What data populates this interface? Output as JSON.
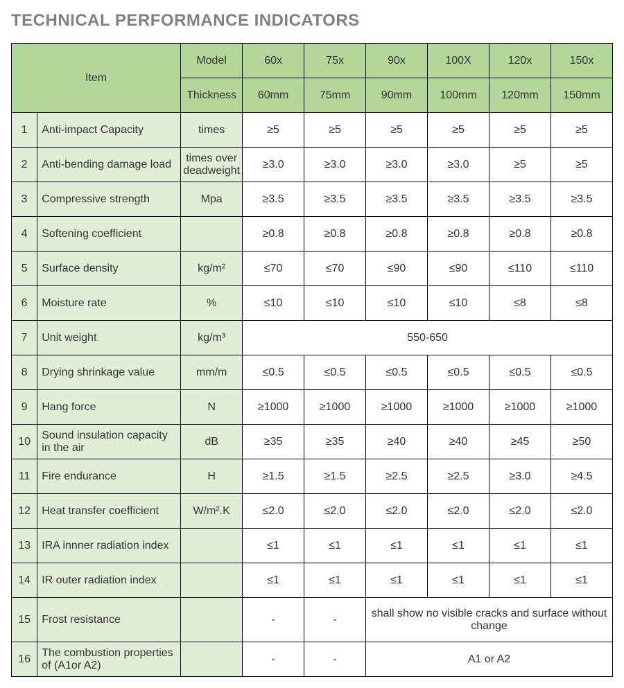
{
  "title": "TECHNICAL PERFORMANCE INDICATORS",
  "header": {
    "item": "Item",
    "model": "Model",
    "thickness": "Thickness",
    "models": [
      "60x",
      "75x",
      "90x",
      "100X",
      "120x",
      "150x"
    ],
    "thicknesses": [
      "60mm",
      "75mm",
      "90mm",
      "100mm",
      "120mm",
      "150mm"
    ]
  },
  "rows": [
    {
      "n": "1",
      "item": "Anti-impact Capacity",
      "unit": "times",
      "v": [
        "≥5",
        "≥5",
        "≥5",
        "≥5",
        "≥5",
        "≥5"
      ]
    },
    {
      "n": "2",
      "item": "Anti-bending damage load",
      "unit": "times over deadweight",
      "v": [
        "≥3.0",
        "≥3.0",
        "≥3.0",
        "≥3.0",
        "≥5",
        "≥5"
      ]
    },
    {
      "n": "3",
      "item": "Compressive strength",
      "unit": "Mpa",
      "v": [
        "≥3.5",
        "≥3.5",
        "≥3.5",
        "≥3.5",
        "≥3.5",
        "≥3.5"
      ]
    },
    {
      "n": "4",
      "item": "Softening coefficient",
      "unit": "",
      "v": [
        "≥0.8",
        "≥0.8",
        "≥0.8",
        "≥0.8",
        "≥0.8",
        "≥0.8"
      ]
    },
    {
      "n": "5",
      "item": "Surface density",
      "unit": "kg/m²",
      "v": [
        "≤70",
        "≤70",
        "≤90",
        "≤90",
        "≤110",
        "≤110"
      ]
    },
    {
      "n": "6",
      "item": "Moisture rate",
      "unit": "%",
      "v": [
        "≤10",
        "≤10",
        "≤10",
        "≤10",
        "≤8",
        "≤8"
      ]
    },
    {
      "n": "7",
      "item": "Unit weight",
      "unit": "kg/m³",
      "span": "550-650"
    },
    {
      "n": "8",
      "item": "Drying shrinkage value",
      "unit": "mm/m",
      "v": [
        "≤0.5",
        "≤0.5",
        "≤0.5",
        "≤0.5",
        "≤0.5",
        "≤0.5"
      ]
    },
    {
      "n": "9",
      "item": "Hang force",
      "unit": "N",
      "v": [
        "≥1000",
        "≥1000",
        "≥1000",
        "≥1000",
        "≥1000",
        "≥1000"
      ]
    },
    {
      "n": "10",
      "item": "Sound insulation capacity in the air",
      "unit": "dB",
      "v": [
        "≥35",
        "≥35",
        "≥40",
        "≥40",
        "≥45",
        "≥50"
      ]
    },
    {
      "n": "11",
      "item": "Fire endurance",
      "unit": "H",
      "v": [
        "≥1.5",
        "≥1.5",
        "≥2.5",
        "≥2.5",
        "≥3.0",
        "≥4.5"
      ]
    },
    {
      "n": "12",
      "item": "Heat transfer coefficient",
      "unit": "W/m².K",
      "v": [
        "≤2.0",
        "≤2.0",
        "≤2.0",
        "≤2.0",
        "≤2.0",
        "≤2.0"
      ]
    },
    {
      "n": "13",
      "item": "IRA innner radiation index",
      "unit": "",
      "v": [
        "≤1",
        "≤1",
        "≤1",
        "≤1",
        "≤1",
        "≤1"
      ]
    },
    {
      "n": "14",
      "item": "IR outer radiation index",
      "unit": "",
      "v": [
        "≤1",
        "≤1",
        "≤1",
        "≤1",
        "≤1",
        "≤1"
      ]
    },
    {
      "n": "15",
      "item": "Frost resistance",
      "unit": "",
      "v2": [
        "-",
        "-"
      ],
      "span4": "shall show no visible cracks and surface without change",
      "tall": true
    },
    {
      "n": "16",
      "item": "The combustion properties of (A1or A2)",
      "unit": "",
      "v2": [
        "-",
        "-"
      ],
      "span4": "A1 or A2"
    }
  ],
  "style": {
    "title_color": "#808080",
    "header_bg": "#b3d69b",
    "label_bg": "#e1eed7",
    "border_color": "#000000",
    "text_color": "#333333",
    "font_family": "Arial",
    "title_fontsize": 24,
    "cell_fontsize": 16
  }
}
